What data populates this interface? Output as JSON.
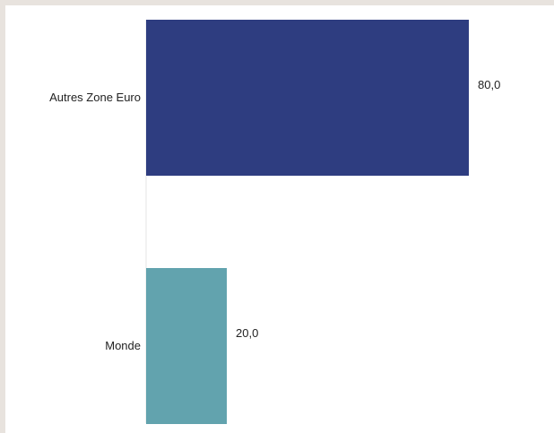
{
  "chart_data": {
    "type": "bar",
    "orientation": "horizontal",
    "title": "",
    "xlabel": "",
    "ylabel": "",
    "categories": [
      "Autres Zone Euro",
      "Monde"
    ],
    "values": [
      80,
      20
    ],
    "value_labels": [
      "80,0",
      "20,0"
    ],
    "colors": [
      "#2e3d80",
      "#62a3ae"
    ],
    "xlim": [
      0,
      100
    ],
    "grid": false,
    "legend": "none"
  }
}
